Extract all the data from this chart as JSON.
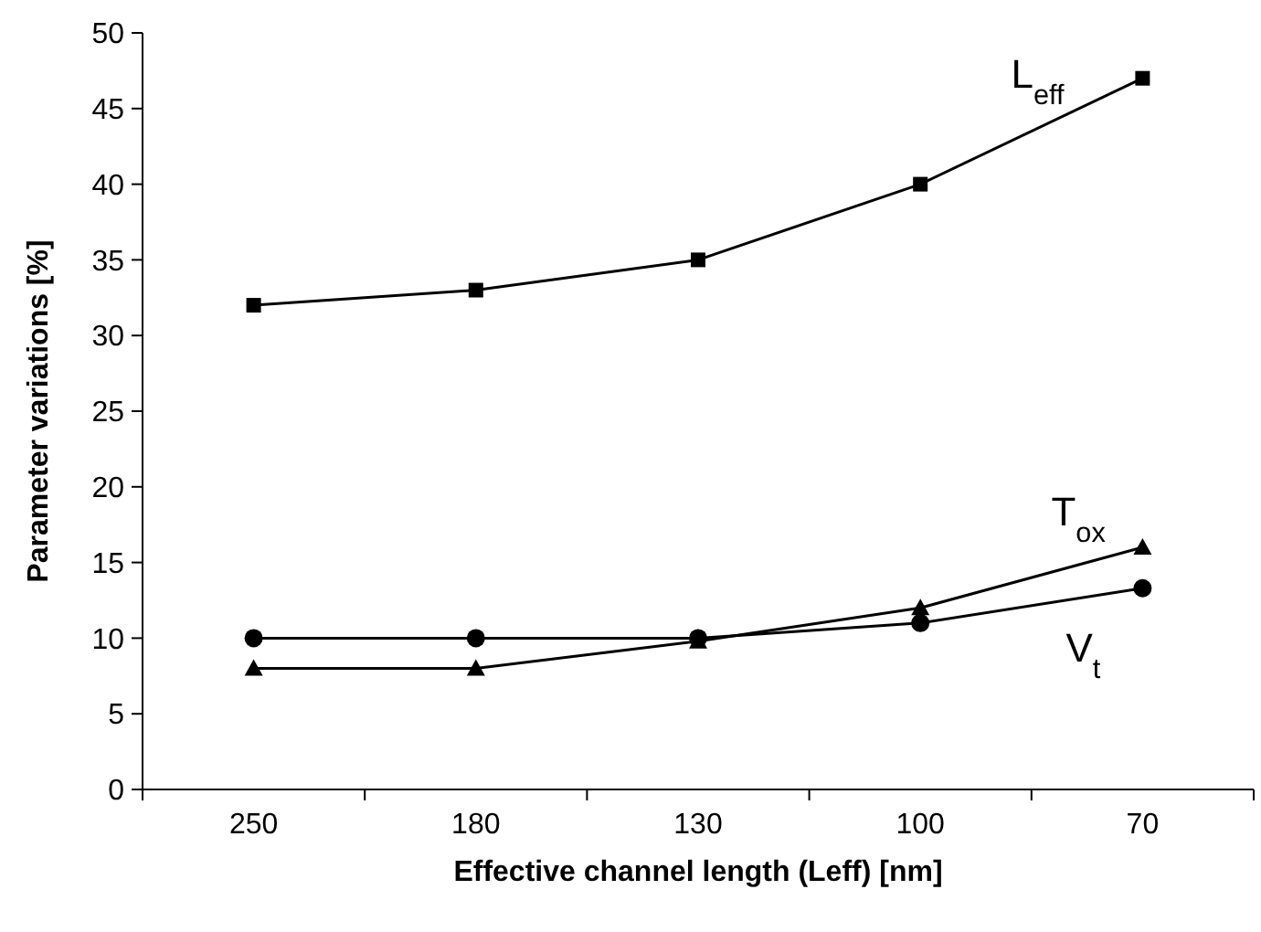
{
  "chart_data": {
    "type": "line",
    "xlabel": "Effective channel length (Leff) [nm]",
    "ylabel": "Parameter variations [%]",
    "categories": [
      "250",
      "180",
      "130",
      "100",
      "70"
    ],
    "ylim": [
      0,
      50
    ],
    "yticks": [
      0,
      5,
      10,
      15,
      20,
      25,
      30,
      35,
      40,
      45,
      50
    ],
    "grid": false,
    "series": [
      {
        "name": "L$_{eff}$",
        "color": "#000000",
        "marker": "square",
        "values": [
          32,
          33,
          35,
          40,
          47
        ]
      },
      {
        "name": "T$_{ox}$",
        "color": "#000000",
        "marker": "triangle",
        "values": [
          8,
          8,
          9.8,
          12,
          16
        ]
      },
      {
        "name": "V$_{t}$",
        "color": "#000000",
        "marker": "circle",
        "values": [
          10,
          10,
          10,
          11,
          13.3
        ]
      }
    ]
  }
}
